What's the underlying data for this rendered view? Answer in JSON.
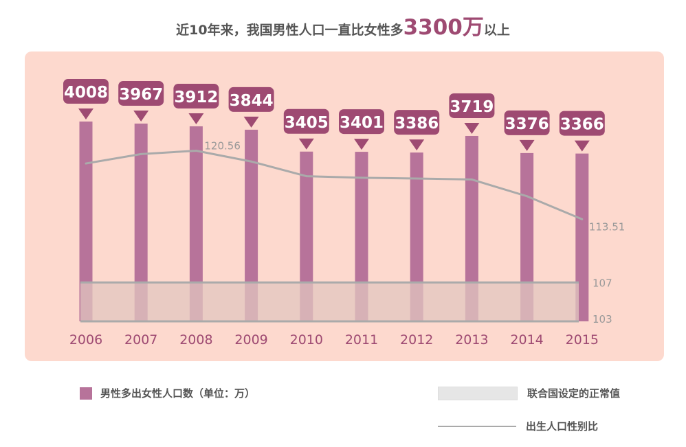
{
  "title": {
    "before": "近10年来，我国男性人口一直比女性多",
    "highlight": "3300万",
    "after": "以上"
  },
  "legend": {
    "bar": "男性多出女性人口数（单位：万）",
    "band": "联合国设定的正常值",
    "line": "出生人口性别比"
  },
  "colors": {
    "bar": "#b7739a",
    "label_box": "#9e4a72",
    "line": "#aaaaaa",
    "band": "#e2c6bf",
    "panel": "#fdd9ce",
    "axis_text": "#9e4a72",
    "ratio_text": "#999999"
  },
  "chart_data": {
    "type": "bar",
    "categories": [
      "2006",
      "2007",
      "2008",
      "2009",
      "2010",
      "2011",
      "2012",
      "2013",
      "2014",
      "2015"
    ],
    "series": [
      {
        "name": "男性多出女性人口数（单位：万）",
        "type": "bar",
        "values": [
          4008,
          3967,
          3912,
          3844,
          3405,
          3401,
          3386,
          3719,
          3376,
          3366
        ]
      },
      {
        "name": "出生人口性别比",
        "type": "line",
        "values": [
          119.25,
          120.22,
          120.56,
          119.45,
          117.94,
          117.78,
          117.7,
          117.6,
          115.88,
          113.51
        ]
      }
    ],
    "line_labels": [
      {
        "index": 2,
        "text": "120.56"
      },
      {
        "index": 9,
        "text": "113.51"
      }
    ],
    "normal_range": {
      "name": "联合国设定的正常值",
      "low": 103,
      "high": 107,
      "low_label": "103",
      "high_label": "107"
    },
    "bar_ylim": [
      0,
      4300
    ],
    "line_ylim": [
      103,
      123
    ],
    "legend_position": "bottom"
  }
}
